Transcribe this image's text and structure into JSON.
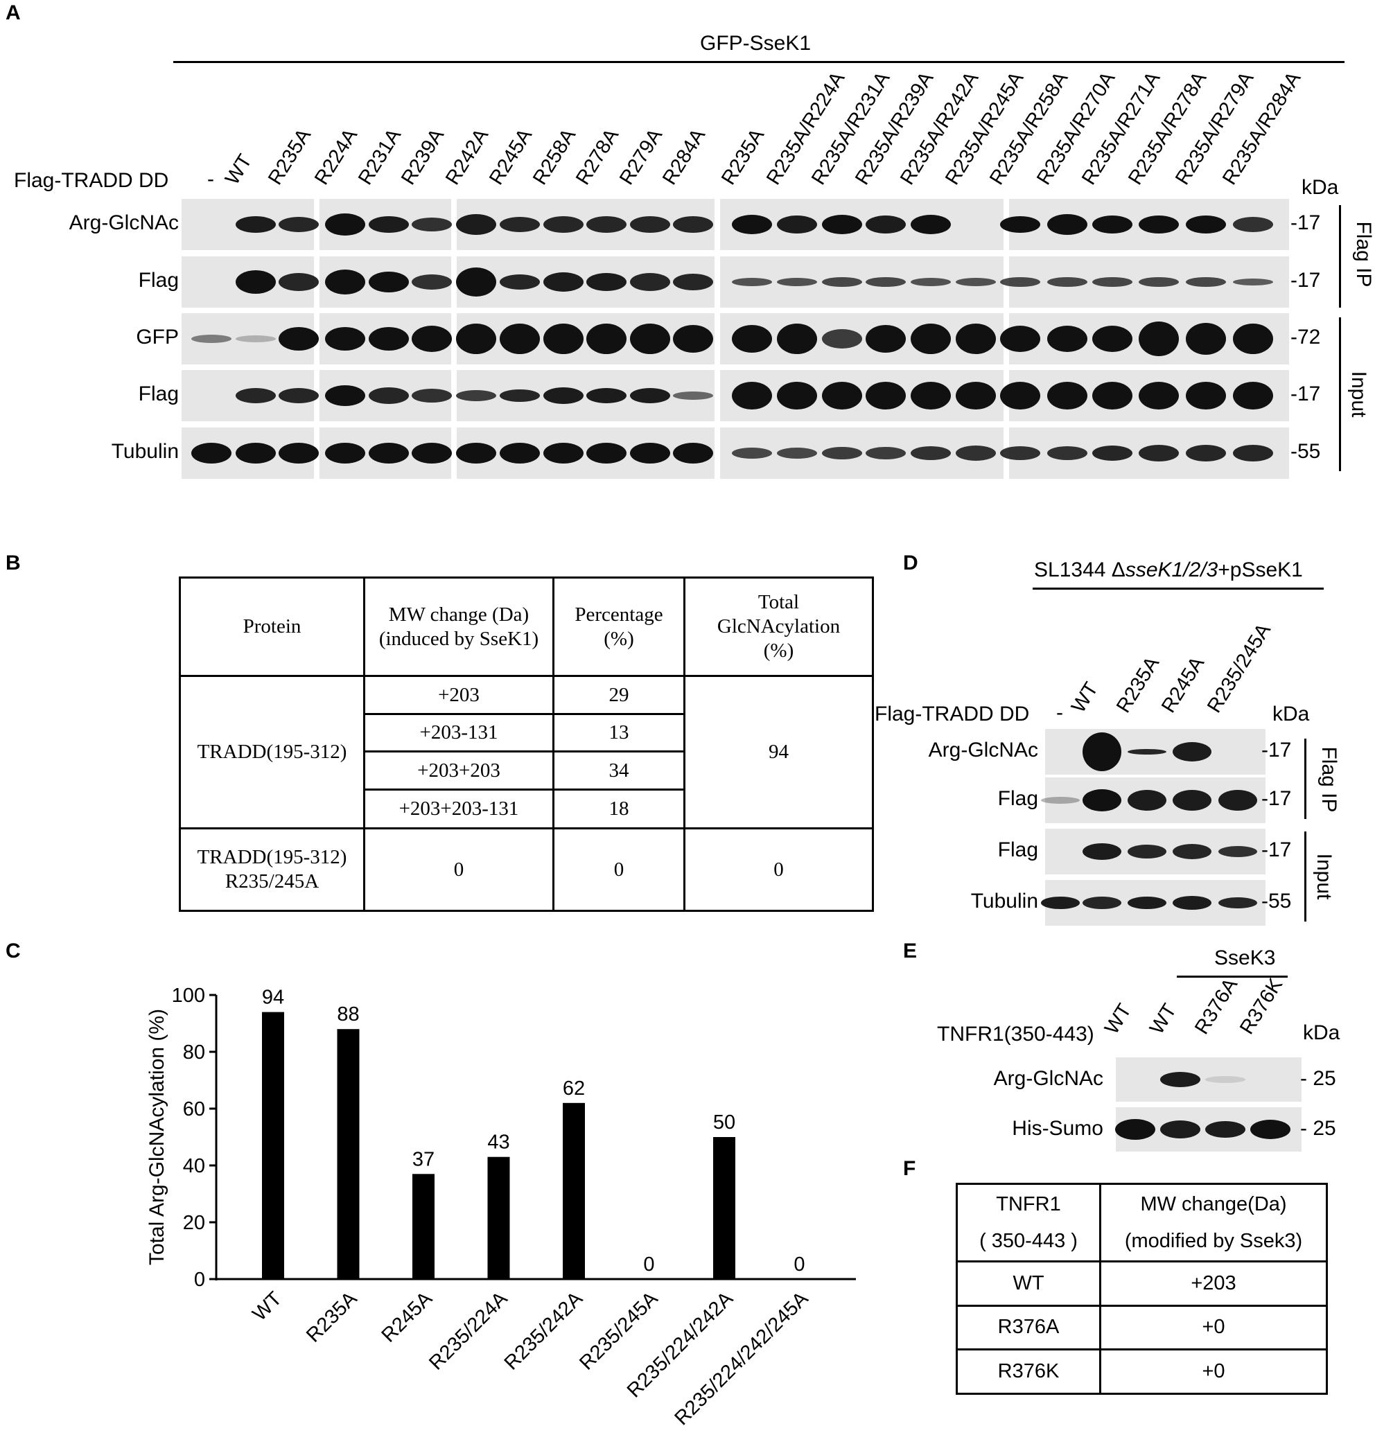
{
  "panels": {
    "A": "A",
    "B": "B",
    "C": "C",
    "D": "D",
    "E": "E",
    "F": "F"
  },
  "panelA": {
    "header": "GFP-SseK1",
    "row_axis_label": "Flag-TRADD DD",
    "lanes": [
      "-",
      "WT",
      "R235A",
      "R224A",
      "R231A",
      "R239A",
      "R242A",
      "R245A",
      "R258A",
      "R278A",
      "R279A",
      "R284A",
      "R235A",
      "R235A/R224A",
      "R235A/R231A",
      "R235A/R239A",
      "R235A/R242A",
      "R235A/R245A",
      "R235A/R258A",
      "R235A/R270A",
      "R235A/R271A",
      "R235A/R278A",
      "R235A/R279A",
      "R235A/R284A"
    ],
    "rows": [
      "Arg-GlcNAc",
      "Flag",
      "GFP",
      "Flag",
      "Tubulin"
    ],
    "kda_header": "kDa",
    "kda_values": [
      "-17",
      "-17",
      "-72",
      "-17",
      "-55"
    ],
    "groups": [
      "Flag IP",
      "Input"
    ]
  },
  "panelB": {
    "headers": [
      "Protein",
      "MW change (Da)\n(induced by SseK1)",
      "Percentage\n(%)",
      "Total\nGlcNAcylation\n(%)"
    ],
    "protein1": "TRADD(195-312)",
    "rows1": [
      {
        "mw": "+203",
        "pct": "29"
      },
      {
        "mw": "+203-131",
        "pct": "13"
      },
      {
        "mw": "+203+203",
        "pct": "34"
      },
      {
        "mw": "+203+203-131",
        "pct": "18"
      }
    ],
    "total1": "94",
    "protein2": "TRADD(195-312)\nR235/245A",
    "mw2": "0",
    "pct2": "0",
    "total2": "0"
  },
  "chart_data": {
    "type": "bar",
    "categories": [
      "WT",
      "R235A",
      "R245A",
      "R235/224A",
      "R235/242A",
      "R235/245A",
      "R235/224/242A",
      "R235/224/242/245A"
    ],
    "values": [
      94,
      88,
      37,
      43,
      62,
      0,
      50,
      0
    ],
    "bar_labels": [
      "94",
      "88",
      "37",
      "43",
      "62",
      "0",
      "50",
      "0"
    ],
    "ylabel": "Total Arg-GlcNAcylation (%)",
    "yticks": [
      "0",
      "20",
      "40",
      "60",
      "80",
      "100"
    ],
    "ylim": [
      0,
      100
    ],
    "bar_color": "#000000"
  },
  "panelD": {
    "header_prefix": "SL1344 Δ",
    "header_italic": "sseK1/2/3",
    "header_suffix": "+pSseK1",
    "row_axis_label": "Flag-TRADD DD",
    "lanes": [
      "-",
      "WT",
      "R235A",
      "R245A",
      "R235/245A"
    ],
    "kda_header": "kDa",
    "rows": [
      "Arg-GlcNAc",
      "Flag",
      "Flag",
      "Tubulin"
    ],
    "kda_values": [
      "-17",
      "-17",
      "-17",
      "-55"
    ],
    "groups": [
      "Flag IP",
      "Input"
    ]
  },
  "panelE": {
    "header": "SseK3",
    "row_axis_label": "TNFR1(350-443)",
    "lanes": [
      "WT",
      "WT",
      "R376A",
      "R376K"
    ],
    "kda_header": "kDa",
    "rows": [
      "Arg-GlcNAc",
      "His-Sumo"
    ],
    "kda_values": [
      "- 25",
      "- 25"
    ]
  },
  "panelF": {
    "header_col1_line1": "TNFR1",
    "header_col1_line2": "( 350-443 )",
    "header_col2_line1": "MW change(Da)",
    "header_col2_line2": "(modified by Ssek3)",
    "rows": [
      {
        "name": "WT",
        "mw": "+203"
      },
      {
        "name": "R376A",
        "mw": "+0"
      },
      {
        "name": "R376K",
        "mw": "+0"
      }
    ]
  }
}
